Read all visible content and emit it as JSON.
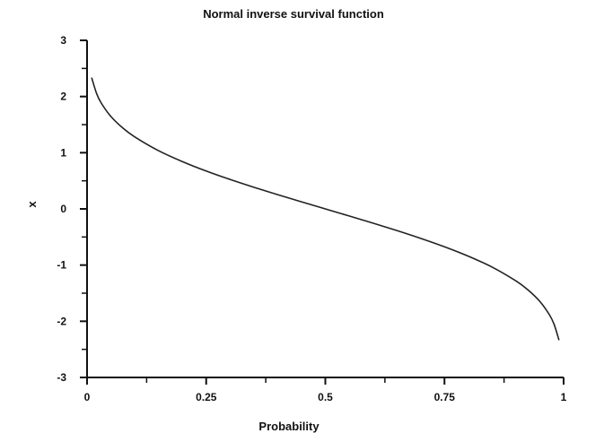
{
  "chart_data": {
    "type": "line",
    "title": "Normal inverse survival function",
    "xlabel": "Probability",
    "ylabel": "x",
    "xlim": [
      0,
      1
    ],
    "ylim": [
      -3,
      3
    ],
    "x_ticks": [
      {
        "value": 0,
        "label": "0"
      },
      {
        "value": 0.25,
        "label": "0.25"
      },
      {
        "value": 0.5,
        "label": "0.5"
      },
      {
        "value": 0.75,
        "label": "0.75"
      },
      {
        "value": 1,
        "label": "1"
      }
    ],
    "y_ticks": [
      {
        "value": 3,
        "label": "3"
      },
      {
        "value": 2,
        "label": "2"
      },
      {
        "value": 1,
        "label": "1"
      },
      {
        "value": 0,
        "label": "0"
      },
      {
        "value": -1,
        "label": "-1"
      },
      {
        "value": -2,
        "label": "-2"
      },
      {
        "value": -3,
        "label": "-3"
      }
    ],
    "series": [
      {
        "name": "inverse survival function",
        "color": "#222222",
        "x": [
          0.01,
          0.02,
          0.03,
          0.05,
          0.075,
          0.1,
          0.15,
          0.2,
          0.25,
          0.3,
          0.35,
          0.4,
          0.45,
          0.5,
          0.55,
          0.6,
          0.65,
          0.7,
          0.75,
          0.8,
          0.85,
          0.9,
          0.925,
          0.95,
          0.97,
          0.98,
          0.99
        ],
        "y": [
          2.326,
          2.054,
          1.881,
          1.645,
          1.44,
          1.282,
          1.036,
          0.842,
          0.674,
          0.524,
          0.385,
          0.253,
          0.126,
          0.0,
          -0.126,
          -0.253,
          -0.385,
          -0.524,
          -0.674,
          -0.842,
          -1.036,
          -1.282,
          -1.44,
          -1.645,
          -1.881,
          -2.054,
          -2.326
        ]
      }
    ]
  }
}
